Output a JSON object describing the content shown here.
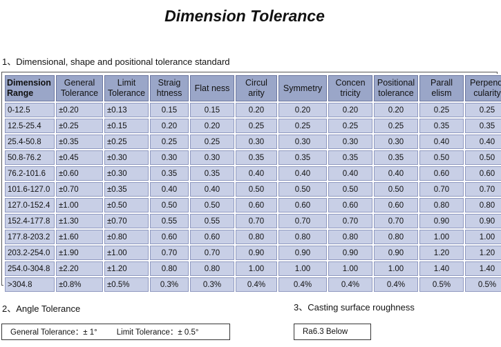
{
  "title": "Dimension Tolerance",
  "section1": {
    "label": "1、Dimensional, shape and positional tolerance standard"
  },
  "table": {
    "headers": [
      "Dimension Range",
      "General Tolerance",
      "Limit Tolerance",
      "Straig htness",
      "Flat ness",
      "Circul arity",
      "Symmetry",
      "Concen tricity",
      "Positional tolerance",
      "Parall elism",
      "Perpendi cularity"
    ],
    "rows": [
      [
        "0-12.5",
        "±0.20",
        "±0.13",
        "0.15",
        "0.15",
        "0.20",
        "0.20",
        "0.20",
        "0.20",
        "0.25",
        "0.25"
      ],
      [
        "12.5-25.4",
        "±0.25",
        "±0.15",
        "0.20",
        "0.20",
        "0.25",
        "0.25",
        "0.25",
        "0.25",
        "0.35",
        "0.35"
      ],
      [
        "25.4-50.8",
        "±0.35",
        "±0.25",
        "0.25",
        "0.25",
        "0.30",
        "0.30",
        "0.30",
        "0.30",
        "0.40",
        "0.40"
      ],
      [
        "50.8-76.2",
        "±0.45",
        "±0.30",
        "0.30",
        "0.30",
        "0.35",
        "0.35",
        "0.35",
        "0.35",
        "0.50",
        "0.50"
      ],
      [
        "76.2-101.6",
        "±0.60",
        "±0.30",
        "0.35",
        "0.35",
        "0.40",
        "0.40",
        "0.40",
        "0.40",
        "0.60",
        "0.60"
      ],
      [
        "101.6-127.0",
        "±0.70",
        "±0.35",
        "0.40",
        "0.40",
        "0.50",
        "0.50",
        "0.50",
        "0.50",
        "0.70",
        "0.70"
      ],
      [
        "127.0-152.4",
        "±1.00",
        "±0.50",
        "0.50",
        "0.50",
        "0.60",
        "0.60",
        "0.60",
        "0.60",
        "0.80",
        "0.80"
      ],
      [
        "152.4-177.8",
        "±1.30",
        "±0.70",
        "0.55",
        "0.55",
        "0.70",
        "0.70",
        "0.70",
        "0.70",
        "0.90",
        "0.90"
      ],
      [
        "177.8-203.2",
        "±1.60",
        "±0.80",
        "0.60",
        "0.60",
        "0.80",
        "0.80",
        "0.80",
        "0.80",
        "1.00",
        "1.00"
      ],
      [
        "203.2-254.0",
        "±1.90",
        "±1.00",
        "0.70",
        "0.70",
        "0.90",
        "0.90",
        "0.90",
        "0.90",
        "1.20",
        "1.20"
      ],
      [
        "254.0-304.8",
        "±2.20",
        "±1.20",
        "0.80",
        "0.80",
        "1.00",
        "1.00",
        "1.00",
        "1.00",
        "1.40",
        "1.40"
      ],
      [
        ">304.8",
        "±0.8%",
        "±0.5%",
        "0.3%",
        "0.3%",
        "0.4%",
        "0.4%",
        "0.4%",
        "0.4%",
        "0.5%",
        "0.5%"
      ]
    ]
  },
  "section2": {
    "label": "2、Angle Tolerance",
    "general": "General Tolerance：± 1°",
    "limit": "Limit Tolerance：± 0.5°"
  },
  "section3": {
    "label": "3、Casting surface roughness",
    "value": "Ra6.3  Below"
  },
  "colors": {
    "header_bg": "#9aa6c8",
    "cell_bg": "#c8cfe6",
    "border": "#8e98bf"
  }
}
